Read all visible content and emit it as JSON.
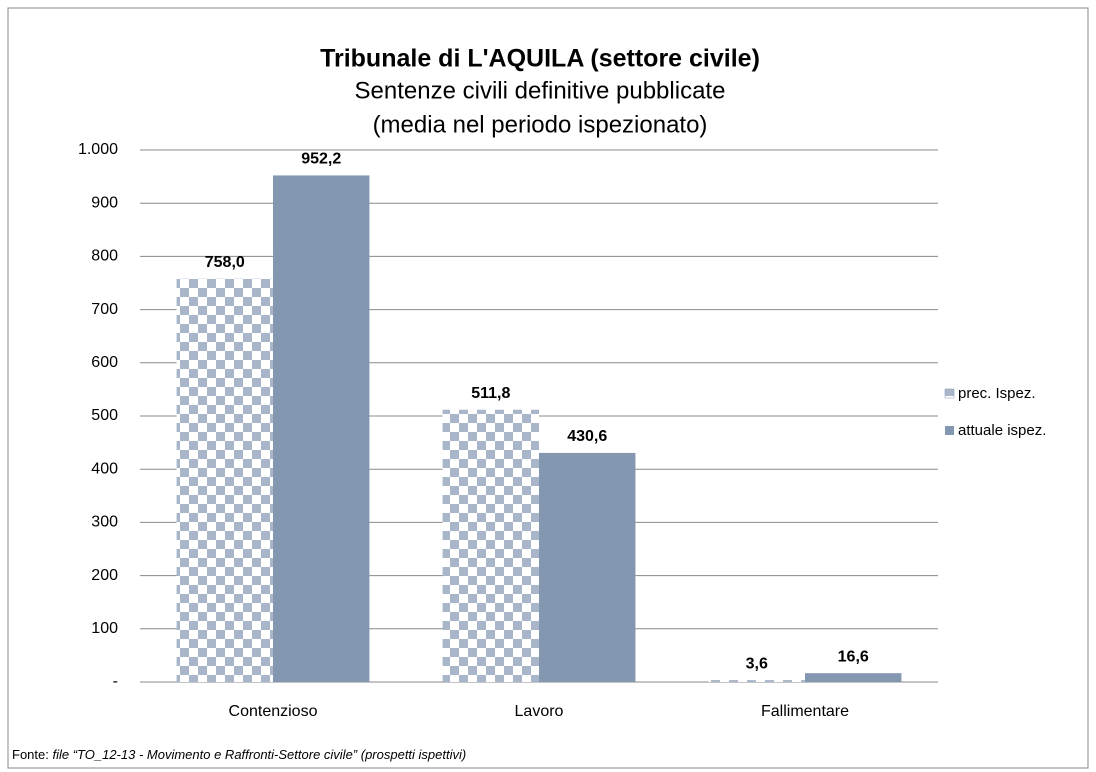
{
  "chart_data": {
    "type": "bar",
    "title": "Tribunale di L'AQUILA (settore civile)",
    "subtitle": [
      "Sentenze civili definitive pubblicate",
      "(media nel periodo ispezionato)"
    ],
    "categories": [
      "Contenzioso",
      "Lavoro",
      "Fallimentare"
    ],
    "series": [
      {
        "name": "prec. Ispez.",
        "color": "#a9b6c9",
        "pattern": "checkerboard",
        "values": [
          758.0,
          511.8,
          3.6
        ],
        "value_labels": [
          "758,0",
          "511,8",
          "3,6"
        ]
      },
      {
        "name": "attuale ispez.",
        "color": "#8497b0",
        "values": [
          952.2,
          430.6,
          16.6
        ],
        "value_labels": [
          "952,2",
          "430,6",
          "16,6"
        ]
      }
    ],
    "ylim": [
      0,
      1000
    ],
    "yticks": [
      {
        "value": 0,
        "label": "-"
      },
      100,
      200,
      300,
      400,
      500,
      600,
      700,
      800,
      900,
      {
        "value": 1000,
        "label": "1.000"
      }
    ],
    "grid": true,
    "legend": "right",
    "source": {
      "label": "Fonte:",
      "text": "file “TO_12-13 - Movimento e Raffronti-Settore civile” (prospetti ispettivi)"
    }
  }
}
